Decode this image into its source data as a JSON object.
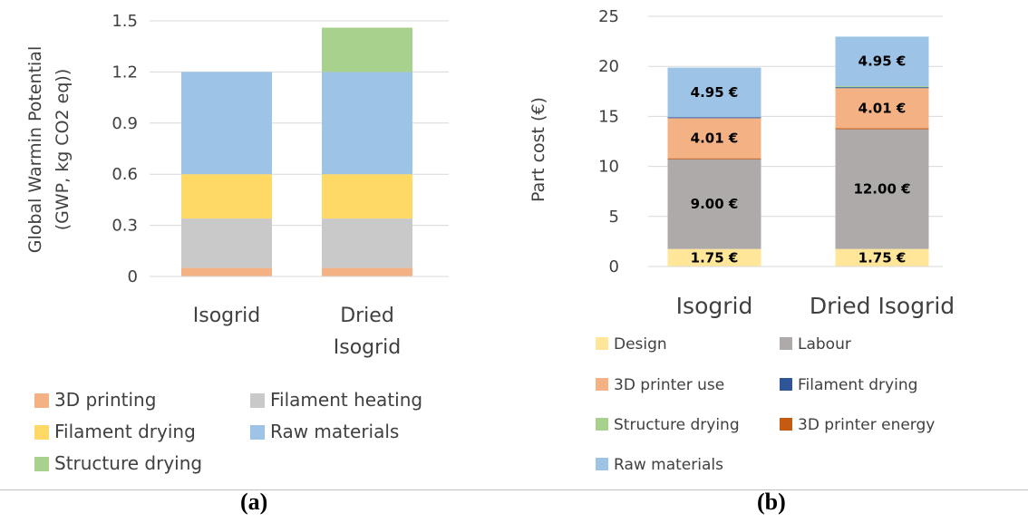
{
  "chart_data": [
    {
      "type": "bar",
      "stacked": true,
      "panel": "(a)",
      "categories": [
        "Isogrid",
        "Dried Isogrid"
      ],
      "category_lines": [
        [
          "Isogrid"
        ],
        [
          "Dried",
          "Isogrid"
        ]
      ],
      "ylabel_lines": [
        "Global Warmin Potential",
        "(GWP, kg CO2 eq))"
      ],
      "ylim": [
        0,
        1.5
      ],
      "yticks": [
        "0",
        "0.3",
        "0.6",
        "0.9",
        "1.2",
        "1.5"
      ],
      "ytick_values": [
        0,
        0.3,
        0.6,
        0.9,
        1.2,
        1.5
      ],
      "grid": true,
      "legend_position": "bottom",
      "series": [
        {
          "name": "3D printing",
          "color": "#f4b183",
          "values": [
            0.05,
            0.05
          ]
        },
        {
          "name": "Filament heating",
          "color": "#c9c9c9",
          "values": [
            0.29,
            0.29
          ]
        },
        {
          "name": "Filament drying",
          "color": "#ffd966",
          "values": [
            0.26,
            0.26
          ]
        },
        {
          "name": "Raw materials",
          "color": "#9dc3e6",
          "values": [
            0.6,
            0.6
          ]
        },
        {
          "name": "Structure drying",
          "color": "#a9d18e",
          "values": [
            0,
            0.26
          ]
        }
      ],
      "legend_order": [
        "3D printing",
        "Filament heating",
        "Filament drying",
        "Raw materials",
        "Structure drying"
      ]
    },
    {
      "type": "bar",
      "stacked": true,
      "panel": "(b)",
      "categories": [
        "Isogrid",
        "Dried Isogrid"
      ],
      "category_lines": [
        [
          "Isogrid"
        ],
        [
          "Dried Isogrid"
        ]
      ],
      "ylabel_lines": [
        "Part cost (€)"
      ],
      "ylim": [
        0,
        25
      ],
      "yticks": [
        "0",
        "5",
        "10",
        "15",
        "20",
        "25"
      ],
      "ytick_values": [
        0,
        5,
        10,
        15,
        20,
        25
      ],
      "grid": true,
      "legend_position": "bottom",
      "series": [
        {
          "name": "Design",
          "color": "#ffe699",
          "values": [
            1.75,
            1.75
          ],
          "labels": [
            "1.75 €",
            "1.75 €"
          ]
        },
        {
          "name": "Labour",
          "color": "#aeaaaa",
          "values": [
            9.0,
            12.0
          ],
          "labels": [
            "9.00 €",
            "12.00 €"
          ]
        },
        {
          "name": "3D printer energy",
          "color": "#c55a11",
          "values": [
            0.06,
            0.06
          ],
          "labels": [
            "",
            ""
          ]
        },
        {
          "name": "3D printer use",
          "color": "#f4b183",
          "values": [
            4.01,
            4.01
          ],
          "labels": [
            "4.01 €",
            "4.01 €"
          ]
        },
        {
          "name": "Filament drying",
          "color": "#2f5597",
          "values": [
            0.1,
            0.1
          ],
          "labels": [
            "",
            ""
          ]
        },
        {
          "name": "Structure drying",
          "color": "#a9d18e",
          "values": [
            0,
            0.1
          ],
          "labels": [
            "",
            ""
          ]
        },
        {
          "name": "Raw materials",
          "color": "#9dc3e6",
          "values": [
            4.95,
            4.95
          ],
          "labels": [
            "4.95 €",
            "4.95 €"
          ]
        }
      ],
      "legend_order": [
        "Design",
        "Labour",
        "3D printer use",
        "Filament drying",
        "Structure drying",
        "3D printer energy",
        "Raw materials"
      ]
    }
  ],
  "panel_labels": {
    "a": "(a)",
    "b": "(b)"
  }
}
